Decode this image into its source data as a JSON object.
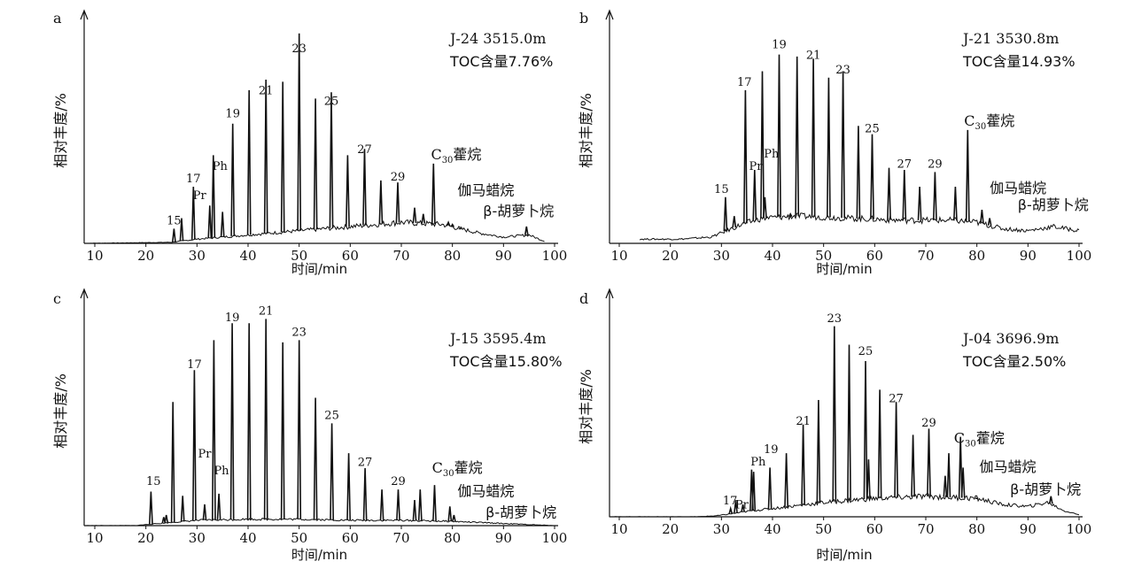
{
  "chart_data": [
    {
      "type": "line",
      "panel_label": "a",
      "title": "J-24 3515.0m",
      "subtitle": "TOC含量7.76%",
      "xlabel": "时间/min",
      "ylabel": "相对丰度/%",
      "xlim": [
        8,
        100
      ],
      "ylim": [
        0,
        100
      ],
      "x_ticks": [
        "10",
        "20",
        "30",
        "40",
        "50",
        "60",
        "70",
        "80",
        "90",
        "100"
      ],
      "baseline": [
        [
          8,
          0
        ],
        [
          25,
          0.5
        ],
        [
          30,
          2
        ],
        [
          40,
          4
        ],
        [
          50,
          6
        ],
        [
          60,
          8
        ],
        [
          70,
          10
        ],
        [
          78,
          9
        ],
        [
          85,
          5
        ],
        [
          90,
          3
        ],
        [
          95,
          4
        ],
        [
          98,
          1
        ]
      ],
      "peaks": [
        [
          25.5,
          7
        ],
        [
          27,
          12
        ],
        [
          29.3,
          27
        ],
        [
          32.5,
          18
        ],
        [
          33.2,
          42
        ],
        [
          35,
          15
        ],
        [
          37,
          57
        ],
        [
          40.2,
          73
        ],
        [
          43.5,
          78
        ],
        [
          46.8,
          77
        ],
        [
          50,
          100
        ],
        [
          53.2,
          69
        ],
        [
          56.3,
          72
        ],
        [
          59.5,
          42
        ],
        [
          62.8,
          45
        ],
        [
          66,
          30
        ],
        [
          69.3,
          29
        ],
        [
          72.6,
          17
        ],
        [
          74.3,
          14
        ],
        [
          76.3,
          38
        ],
        [
          79.2,
          10
        ],
        [
          80,
          9
        ],
        [
          81.5,
          7
        ],
        [
          94.5,
          8
        ]
      ],
      "annotations": [
        {
          "text": "15",
          "x": 25.5,
          "y": 9
        },
        {
          "text": "17",
          "x": 29.3,
          "y": 29
        },
        {
          "text": "Pr",
          "x": 30.5,
          "y": 21
        },
        {
          "text": "Ph",
          "x": 34.5,
          "y": 35
        },
        {
          "text": "19",
          "x": 37,
          "y": 60
        },
        {
          "text": "21",
          "x": 43.5,
          "y": 71
        },
        {
          "text": "23",
          "x": 50,
          "y": 91
        },
        {
          "text": "25",
          "x": 56.3,
          "y": 66
        },
        {
          "text": "27",
          "x": 62.8,
          "y": 43
        },
        {
          "text": "29",
          "x": 69.3,
          "y": 30
        },
        {
          "text": "C",
          "sub": "30",
          "suffix": "藿烷",
          "x": 75.8,
          "y": 40
        },
        {
          "text": "伽马蜡烷",
          "x": 81,
          "y": 23
        },
        {
          "text": "β-胡萝卜烷",
          "x": 86,
          "y": 13
        }
      ]
    },
    {
      "type": "line",
      "panel_label": "b",
      "title": "J-21 3530.8m",
      "subtitle": "TOC含量14.93%",
      "xlabel": "时间/min",
      "ylabel": "相对丰度/%",
      "xlim": [
        8,
        100
      ],
      "ylim": [
        0,
        100
      ],
      "x_ticks": [
        "10",
        "20",
        "30",
        "40",
        "50",
        "60",
        "70",
        "80",
        "90",
        "100"
      ],
      "baseline": [
        [
          14,
          2
        ],
        [
          22,
          2
        ],
        [
          28,
          3
        ],
        [
          31,
          6
        ],
        [
          34,
          9
        ],
        [
          38,
          12
        ],
        [
          45,
          13
        ],
        [
          55,
          12
        ],
        [
          65,
          11
        ],
        [
          75,
          11
        ],
        [
          80,
          10
        ],
        [
          85,
          7
        ],
        [
          90,
          6
        ],
        [
          95,
          8
        ],
        [
          100,
          6
        ]
      ],
      "peaks": [
        [
          30.8,
          22
        ],
        [
          32.5,
          13
        ],
        [
          34.7,
          73
        ],
        [
          36.5,
          35
        ],
        [
          38,
          82
        ],
        [
          38.5,
          22
        ],
        [
          41.3,
          90
        ],
        [
          43.5,
          14
        ],
        [
          44.8,
          89
        ],
        [
          48,
          88
        ],
        [
          51,
          79
        ],
        [
          53.8,
          82
        ],
        [
          56.8,
          56
        ],
        [
          59.5,
          52
        ],
        [
          62.8,
          36
        ],
        [
          65.8,
          35
        ],
        [
          68.8,
          27
        ],
        [
          71.8,
          34
        ],
        [
          75.8,
          27
        ],
        [
          78.2,
          54
        ],
        [
          81,
          16
        ],
        [
          82.5,
          12
        ]
      ],
      "annotations": [
        {
          "text": "15",
          "x": 30,
          "y": 24
        },
        {
          "text": "17",
          "x": 34.5,
          "y": 75
        },
        {
          "text": "Pr",
          "x": 36.7,
          "y": 35
        },
        {
          "text": "Ph",
          "x": 39.8,
          "y": 41
        },
        {
          "text": "19",
          "x": 41.3,
          "y": 93
        },
        {
          "text": "21",
          "x": 48,
          "y": 88
        },
        {
          "text": "23",
          "x": 53.8,
          "y": 81
        },
        {
          "text": "25",
          "x": 59.5,
          "y": 53
        },
        {
          "text": "27",
          "x": 65.8,
          "y": 36
        },
        {
          "text": "29",
          "x": 71.8,
          "y": 36
        },
        {
          "text": "C",
          "sub": "30",
          "suffix": "藿烷",
          "x": 77.5,
          "y": 56
        },
        {
          "text": "伽马蜡烷",
          "x": 82.5,
          "y": 24
        },
        {
          "text": "β-胡萝卜烷",
          "x": 88,
          "y": 16
        }
      ]
    },
    {
      "type": "line",
      "panel_label": "c",
      "title": "J-15 3595.4m",
      "subtitle": "TOC含量15.80%",
      "xlabel": "时间/min",
      "ylabel": "相对丰度/%",
      "xlim": [
        8,
        100
      ],
      "ylim": [
        0,
        100
      ],
      "x_ticks": [
        "10",
        "20",
        "30",
        "40",
        "50",
        "60",
        "70",
        "80",
        "90",
        "100"
      ],
      "baseline": [
        [
          8,
          0
        ],
        [
          18,
          0
        ],
        [
          20,
          0.5
        ],
        [
          25,
          1.5
        ],
        [
          30,
          2.5
        ],
        [
          40,
          3
        ],
        [
          50,
          3
        ],
        [
          60,
          2.5
        ],
        [
          70,
          2.5
        ],
        [
          80,
          2
        ],
        [
          90,
          1
        ],
        [
          95,
          0.5
        ],
        [
          100,
          0
        ]
      ],
      "peaks": [
        [
          21,
          16
        ],
        [
          23.5,
          4
        ],
        [
          24,
          5
        ],
        [
          25.3,
          58
        ],
        [
          27.2,
          14
        ],
        [
          29.5,
          73
        ],
        [
          31.5,
          10
        ],
        [
          33.3,
          87
        ],
        [
          34.3,
          15
        ],
        [
          36.9,
          95
        ],
        [
          40.2,
          95
        ],
        [
          43.5,
          97
        ],
        [
          46.8,
          86
        ],
        [
          50,
          87
        ],
        [
          53.2,
          60
        ],
        [
          56.4,
          48
        ],
        [
          59.7,
          34
        ],
        [
          62.9,
          27
        ],
        [
          66.2,
          17
        ],
        [
          69.4,
          17
        ],
        [
          72.6,
          12
        ],
        [
          73.7,
          17
        ],
        [
          76.5,
          19
        ],
        [
          79.5,
          9
        ],
        [
          80.3,
          5
        ]
      ],
      "annotations": [
        {
          "text": "15",
          "x": 21.5,
          "y": 19
        },
        {
          "text": "17",
          "x": 29.5,
          "y": 74
        },
        {
          "text": "Pr",
          "x": 31.5,
          "y": 32
        },
        {
          "text": "Ph",
          "x": 34.8,
          "y": 24
        },
        {
          "text": "19",
          "x": 36.9,
          "y": 96
        },
        {
          "text": "21",
          "x": 43.5,
          "y": 99
        },
        {
          "text": "23",
          "x": 50,
          "y": 89
        },
        {
          "text": "25",
          "x": 56.4,
          "y": 50
        },
        {
          "text": "27",
          "x": 62.9,
          "y": 28
        },
        {
          "text": "29",
          "x": 69.4,
          "y": 19
        },
        {
          "text": "C",
          "sub": "30",
          "suffix": "藿烷",
          "x": 76,
          "y": 25
        },
        {
          "text": "伽马蜡烷",
          "x": 81,
          "y": 14
        },
        {
          "text": "β-胡萝卜烷",
          "x": 86.5,
          "y": 4
        }
      ]
    },
    {
      "type": "line",
      "panel_label": "d",
      "title": "J-04 3696.9m",
      "subtitle": "TOC含量2.50%",
      "xlabel": "时间/min",
      "ylabel": "相对丰度/%",
      "xlim": [
        8,
        100
      ],
      "ylim": [
        0,
        100
      ],
      "x_ticks": [
        "10",
        "20",
        "30",
        "40",
        "50",
        "60",
        "70",
        "80",
        "90",
        "100"
      ],
      "baseline": [
        [
          8,
          0
        ],
        [
          25,
          0
        ],
        [
          29,
          0.5
        ],
        [
          32,
          1.5
        ],
        [
          36,
          3
        ],
        [
          40,
          4
        ],
        [
          50,
          7
        ],
        [
          60,
          9
        ],
        [
          70,
          10
        ],
        [
          80,
          9
        ],
        [
          85,
          6
        ],
        [
          90,
          5
        ],
        [
          94,
          7
        ],
        [
          97,
          3
        ],
        [
          100,
          1
        ]
      ],
      "peaks": [
        [
          31.8,
          4
        ],
        [
          32.8,
          8
        ],
        [
          34.2,
          6
        ],
        [
          35.9,
          23
        ],
        [
          36.3,
          22
        ],
        [
          39.5,
          24
        ],
        [
          42.7,
          31
        ],
        [
          46,
          45
        ],
        [
          49,
          57
        ],
        [
          52.1,
          93
        ],
        [
          55,
          84
        ],
        [
          58.2,
          76
        ],
        [
          58.8,
          28
        ],
        [
          61,
          62
        ],
        [
          64.2,
          56
        ],
        [
          67.5,
          40
        ],
        [
          70.6,
          43
        ],
        [
          73.8,
          20
        ],
        [
          74.5,
          31
        ],
        [
          76.8,
          39
        ],
        [
          77.3,
          24
        ],
        [
          80,
          9
        ],
        [
          94.5,
          10
        ]
      ],
      "annotations": [
        {
          "text": "17",
          "x": 31.7,
          "y": 6
        },
        {
          "text": "Pr",
          "x": 34,
          "y": 4
        },
        {
          "text": "Ph",
          "x": 37.2,
          "y": 25
        },
        {
          "text": "19",
          "x": 39.7,
          "y": 31
        },
        {
          "text": "21",
          "x": 46,
          "y": 45
        },
        {
          "text": "23",
          "x": 52.1,
          "y": 95
        },
        {
          "text": "25",
          "x": 58.2,
          "y": 79
        },
        {
          "text": "27",
          "x": 64.2,
          "y": 56
        },
        {
          "text": "29",
          "x": 70.6,
          "y": 44
        },
        {
          "text": "C",
          "sub": "30",
          "suffix": "藿烷",
          "x": 75.5,
          "y": 36
        },
        {
          "text": "伽马蜡烷",
          "x": 80.5,
          "y": 22
        },
        {
          "text": "β-胡萝卜烷",
          "x": 86.5,
          "y": 11
        }
      ]
    }
  ]
}
